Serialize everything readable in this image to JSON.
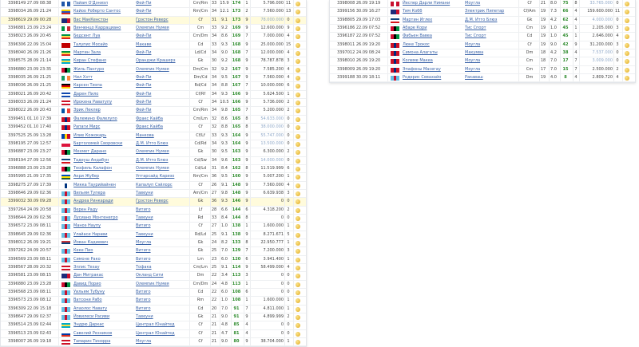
{
  "colors": {
    "link": "#3a63a8",
    "rating": "#2c8a2c",
    "highlight": "#fffbdc",
    "dim_price": "#8fa8c8"
  },
  "left_table": [
    {
      "id": "3398149",
      "date": "27.09 08:38",
      "flag": "scotland",
      "name": "Пайам О'Дэниэл",
      "club": "Фей-Пи",
      "pos": "Cm/Rm",
      "age": "33",
      "q": "15.9",
      "rating": "174",
      "f": "1",
      "price": "5.796.000",
      "bids": "11"
    },
    {
      "id": "3398034",
      "date": "26.09 21:24",
      "flag": "ecuador",
      "name": "Кайоо Роберто Сантос",
      "club": "Фей-Пи",
      "pos": "Rm/Cm",
      "age": "34",
      "q": "12.1",
      "rating": "173",
      "f": "2",
      "price": "7.560.000",
      "bids": "13"
    },
    {
      "id": "3398619",
      "date": "29.09 00:28",
      "flag": "nz",
      "name": "Вас МакКенстон",
      "club": "Грэстон Реверс",
      "pos": "Cf",
      "age": "31",
      "q": "9.1",
      "rating": "173",
      "f": "9",
      "price": "78.000.000",
      "bids": "0",
      "highlight": true
    },
    {
      "id": "3396881",
      "date": "23.09 23:24",
      "flag": "italy",
      "name": "Винченцо Каррациано",
      "club": "Олемпик Нумея",
      "pos": "Cm",
      "age": "33",
      "q": "9.2",
      "rating": "169",
      "f": "9",
      "price": "12.600.000",
      "bids": "9"
    },
    {
      "id": "3398023",
      "date": "26.09 20:45",
      "flag": "congo",
      "name": "Бедсент Луа",
      "club": "Фей-Пи",
      "pos": "Cm/Dm",
      "age": "34",
      "q": "8.6",
      "rating": "169",
      "f": "7",
      "price": "7.000.000",
      "bids": "4"
    },
    {
      "id": "3396306",
      "date": "22.09 15:04",
      "flag": "tonga",
      "name": "Талупис Мосайо",
      "club": "Макаве",
      "pos": "Cd",
      "age": "33",
      "q": "9.3",
      "rating": "168",
      "f": "9",
      "price": "25.000.000",
      "bids": "15"
    },
    {
      "id": "3398040",
      "date": "26.09 21:26",
      "flag": "congo",
      "name": "Мартин Зала",
      "club": "Фей-Пи",
      "pos": "Ld/Cd",
      "age": "34",
      "q": "9.0",
      "rating": "168",
      "f": "7",
      "price": "12.000.000",
      "bids": "4"
    },
    {
      "id": "3398575",
      "date": "28.09 21:14",
      "flag": "bahamas",
      "name": "Киран Стефано",
      "club": "Оранджи Крашерз",
      "pos": "Gk",
      "age": "30",
      "q": "9.2",
      "rating": "168",
      "f": "9",
      "price": "78.787.878",
      "bids": "3"
    },
    {
      "id": "3396880",
      "date": "23.09 23:35",
      "flag": "vanuatu",
      "name": "Жиль Пангуро",
      "club": "Олемпик Нумея",
      "pos": "Dm/Cm",
      "age": "32",
      "q": "9.2",
      "rating": "167",
      "f": "9",
      "price": "7.585.200",
      "bids": "4"
    },
    {
      "id": "3398035",
      "date": "26.09 21:25",
      "flag": "ireland",
      "name": "Нил Хэтт",
      "club": "Фей-Пи",
      "pos": "Dm/Cd",
      "age": "34",
      "q": "9.5",
      "rating": "167",
      "f": "9",
      "price": "7.560.000",
      "bids": "4"
    },
    {
      "id": "3398036",
      "date": "26.09 21:25",
      "flag": "germany",
      "name": "Карсен Тиэпа",
      "club": "Фей-Пи",
      "pos": "Rd/Cd",
      "age": "34",
      "q": "8.8",
      "rating": "167",
      "f": "7",
      "price": "10.000.000",
      "bids": "6"
    },
    {
      "id": "3398021",
      "date": "26.09 20:42",
      "flag": "salvador",
      "name": "Дарен Пило",
      "club": "Фей-Пи",
      "pos": "Cf/Rf",
      "age": "34",
      "q": "9.3",
      "rating": "166",
      "f": "9",
      "price": "5.624.500",
      "bids": "1"
    },
    {
      "id": "3398033",
      "date": "26.09 21:24",
      "flag": "tahiti",
      "name": "Ирокена Раватупу",
      "club": "Фей-Пи",
      "pos": "Cf",
      "age": "34",
      "q": "10.5",
      "rating": "166",
      "f": "9",
      "price": "5.736.000",
      "bids": "2"
    },
    {
      "id": "3398022",
      "date": "26.09 20:43",
      "flag": "france",
      "name": "Эрик Леклер",
      "club": "Фей-Пи",
      "pos": "Cm/Rm",
      "age": "34",
      "q": "9.8",
      "rating": "165",
      "f": "7",
      "price": "5.200.000",
      "bids": "2"
    },
    {
      "id": "3399451",
      "date": "01.10 17:39",
      "flag": "samoa",
      "name": "Фалемино Фалелупо",
      "club": "Фракс Кайба",
      "pos": "Cm/Lm",
      "age": "32",
      "q": "8.6",
      "rating": "165",
      "f": "8",
      "price": "54.633.000",
      "bids": "0"
    },
    {
      "id": "3399452",
      "date": "01.10 17:40",
      "flag": "samoa",
      "name": "Рапаги Мирс",
      "club": "Фракс Кайба",
      "pos": "Cf",
      "age": "32",
      "q": "8.8",
      "rating": "165",
      "f": "8",
      "price": "38.000.000",
      "bids": "0"
    },
    {
      "id": "3397525",
      "date": "25.09 13:28",
      "flag": "moldova",
      "name": "Илие Кожокарь",
      "club": "Манкова",
      "pos": "Cf/Lf",
      "age": "33",
      "q": "9.3",
      "rating": "164",
      "f": "9",
      "price": "55.747.000",
      "bids": "0"
    },
    {
      "id": "3398195",
      "date": "27.09 12:57",
      "flag": "poland",
      "name": "Бартоломей Своровски",
      "club": "Д.М. Итго Блюз",
      "pos": "Cd/Rd",
      "age": "34",
      "q": "9.3",
      "rating": "164",
      "f": "9",
      "price": "13.500.000",
      "bids": "0"
    },
    {
      "id": "3396887",
      "date": "23.09 23:27",
      "flag": "vanuatu",
      "name": "Мехмет Дарано",
      "club": "Олемпик Нумея",
      "pos": "Gk",
      "age": "30",
      "q": "9.5",
      "rating": "163",
      "f": "9",
      "price": "6.300.000",
      "bids": "2"
    },
    {
      "id": "3398194",
      "date": "27.09 12:56",
      "flag": "czech",
      "name": "Тадеуш Андабун",
      "club": "Д.М. Итго Блюз",
      "pos": "Cd/Sw",
      "age": "34",
      "q": "9.6",
      "rating": "163",
      "f": "9",
      "price": "14.000.000",
      "bids": "0"
    },
    {
      "id": "3396888",
      "date": "23.09 23:28",
      "flag": "vanuatu",
      "name": "Теофиль Калафон",
      "club": "Олемпик Нумея",
      "pos": "Cd/Ld",
      "age": "31",
      "q": "8.4",
      "rating": "162",
      "f": "8",
      "price": "11.519.999",
      "bids": "6"
    },
    {
      "id": "3395995",
      "date": "21.09 17:35",
      "flag": "solomon",
      "name": "Акри Жубер",
      "club": "Уптарсайд Каризо",
      "pos": "Rm/Cm",
      "age": "36",
      "q": "9.5",
      "rating": "160",
      "f": "9",
      "price": "5.007.200",
      "bids": "1"
    },
    {
      "id": "3398275",
      "date": "27.09 17:39",
      "flag": "finland",
      "name": "Микка Таурийайнен",
      "club": "Капалуп Сэйлорс",
      "pos": "Cf",
      "age": "26",
      "q": "9.1",
      "rating": "148",
      "f": "9",
      "price": "7.560.000",
      "bids": "4"
    },
    {
      "id": "3398646",
      "date": "29.09 02:36",
      "flag": "fiji",
      "name": "Вильям Тупера",
      "club": "Тавеуни",
      "pos": "Am/Cm",
      "age": "27",
      "q": "9.8",
      "rating": "148",
      "f": "9",
      "price": "6.639.938",
      "bids": "3"
    },
    {
      "id": "3399032",
      "date": "30.09 09:28",
      "flag": "fiji",
      "name": "Андреа Ринкаради",
      "club": "Грэстон Реверс",
      "pos": "Gk",
      "age": "36",
      "q": "9.3",
      "rating": "146",
      "f": "9",
      "price": "0",
      "bids": "0",
      "highlight": true
    },
    {
      "id": "3397264",
      "date": "24.09 20:58",
      "flag": "fiji",
      "name": "Верен Раду",
      "club": "Витиго",
      "pos": "Lf",
      "age": "28",
      "q": "6.6",
      "rating": "144",
      "f": "6",
      "price": "4.318.200",
      "bids": "2"
    },
    {
      "id": "3398644",
      "date": "29.09 02:36",
      "flag": "fiji",
      "name": "Лусиано Монтенегро",
      "club": "Тавеуни",
      "pos": "Rd",
      "age": "33",
      "q": "8.4",
      "rating": "144",
      "f": "8",
      "price": "0",
      "bids": "0"
    },
    {
      "id": "3396572",
      "date": "23.09 08:11",
      "flag": "fiji",
      "name": "Маноэ Наупу",
      "club": "Витиго",
      "pos": "Cf",
      "age": "27",
      "q": "1.0",
      "rating": "138",
      "f": "1",
      "price": "1.600.000",
      "bids": "1"
    },
    {
      "id": "3398645",
      "date": "29.09 02:36",
      "flag": "fiji",
      "name": "Улайаси Нарави",
      "club": "Тавеуни",
      "pos": "Rd/Ld",
      "age": "25",
      "q": "9.1",
      "rating": "138",
      "f": "9",
      "price": "8.271.671",
      "bids": "5"
    },
    {
      "id": "3398012",
      "date": "26.09 19:21",
      "flag": "serbia",
      "name": "Йован Кадиевич",
      "club": "Моугла",
      "pos": "Gk",
      "age": "24",
      "q": "8.2",
      "rating": "133",
      "f": "8",
      "price": "22.950.777",
      "bids": "1"
    },
    {
      "id": "3397262",
      "date": "24.09 20:57",
      "flag": "fiji",
      "name": "Кеке Пио",
      "club": "Витиго",
      "pos": "Gk",
      "age": "25",
      "q": "7.0",
      "rating": "129",
      "f": "7",
      "price": "7.200.000",
      "bids": "3"
    },
    {
      "id": "3396569",
      "date": "23.09 08:11",
      "flag": "fiji",
      "name": "Симоне Рако",
      "club": "Витиго",
      "pos": "Lm",
      "age": "23",
      "q": "6.0",
      "rating": "120",
      "f": "6",
      "price": "3.941.400",
      "bids": "1"
    },
    {
      "id": "3398567",
      "date": "28.09 20:32",
      "flag": "tahiti",
      "name": "Эллис Техау",
      "club": "Тофака",
      "pos": "Cm/Lm",
      "age": "25",
      "q": "9.1",
      "rating": "114",
      "f": "9",
      "price": "58.499.000",
      "bids": "4"
    },
    {
      "id": "3396581",
      "date": "23.09 08:15",
      "flag": "nz",
      "name": "Дан Митракас",
      "club": "Окланд Сити",
      "pos": "Dm",
      "age": "22",
      "q": "3.4",
      "rating": "113",
      "f": "3",
      "price": "0",
      "bids": "0"
    },
    {
      "id": "3396880",
      "date": "23.09 23:28",
      "flag": "vanuatu",
      "name": "Давид Порио",
      "club": "Олемпик Нумея",
      "pos": "Cm/Dm",
      "age": "24",
      "q": "4.8",
      "rating": "113",
      "f": "1",
      "price": "0",
      "bids": "0"
    },
    {
      "id": "3396568",
      "date": "23.09 08:11",
      "flag": "fiji",
      "name": "Уильям Тубуну",
      "club": "Витиго",
      "pos": "Cd",
      "age": "22",
      "q": "6.0",
      "rating": "108",
      "f": "6",
      "price": "0",
      "bids": "0"
    },
    {
      "id": "3396573",
      "date": "23.09 08:12",
      "flag": "fiji",
      "name": "Ватсони Рабо",
      "club": "Витиго",
      "pos": "Rm",
      "age": "22",
      "q": "1.0",
      "rating": "108",
      "f": "1",
      "price": "1.600.000",
      "bids": "1"
    },
    {
      "id": "3396309",
      "date": "22.09 15:18",
      "flag": "fiji",
      "name": "Апаолос Навату",
      "club": "Витиго",
      "pos": "Cd",
      "age": "20",
      "q": "7.0",
      "rating": "91",
      "f": "7",
      "price": "4.811.000",
      "bids": "1"
    },
    {
      "id": "3398647",
      "date": "29.09 02:37",
      "flag": "fiji",
      "name": "Йовилеси Расиви",
      "club": "Тавеуни",
      "pos": "Gk",
      "age": "21",
      "q": "9.0",
      "rating": "91",
      "f": "9",
      "price": "4.899.999",
      "bids": "2"
    },
    {
      "id": "3396514",
      "date": "23.09 02:44",
      "flag": "bahamas",
      "name": "Эндрю Даркас",
      "club": "Централ Юнайтед",
      "pos": "Cf",
      "age": "21",
      "q": "4.8",
      "rating": "85",
      "f": "4",
      "price": "0",
      "bids": "0"
    },
    {
      "id": "3396513",
      "date": "23.09 02:43",
      "flag": "russia",
      "name": "Савелий Резников",
      "club": "Централ Юнайтед",
      "pos": "Cf",
      "age": "21",
      "q": "4.7",
      "rating": "81",
      "f": "4",
      "price": "0",
      "bids": "0"
    },
    {
      "id": "3398007",
      "date": "26.09 19:18",
      "flag": "tahiti",
      "name": "Тамарин Тинорра",
      "club": "Моугла",
      "pos": "Cf",
      "age": "21",
      "q": "9.0",
      "rating": "80",
      "f": "9",
      "price": "38.704.000",
      "bids": "1"
    }
  ],
  "right_table": [
    {
      "id": "3398008",
      "date": "26.09 19:19",
      "flag": "denmark",
      "name": "Йеспер Дарли Нимани",
      "club": "Моугла",
      "pos": "Cf",
      "age": "21",
      "q": "8.0",
      "rating": "75",
      "f": "8",
      "price": "33.765.000",
      "bids": "0"
    },
    {
      "id": "3399156",
      "date": "30.09 16:27",
      "flag": "nz",
      "name": "Тим Кобб",
      "club": "Электрик Пипетар",
      "pos": "Cf/Am",
      "age": "19",
      "q": "7.3",
      "rating": "66",
      "f": "4",
      "price": "159.600.000",
      "bids": "11"
    },
    {
      "id": "3398805",
      "date": "29.09 17:03",
      "flag": "czech",
      "name": "Мартин Иглех",
      "club": "Д.М. Итго Блюз",
      "pos": "Gk",
      "age": "19",
      "q": "4.2",
      "rating": "62",
      "f": "4",
      "price": "4.000.000",
      "bids": "0"
    },
    {
      "id": "3396186",
      "date": "22.09 07:52",
      "flag": "vanuatu",
      "name": "Абаре Кори",
      "club": "Тис Спорт",
      "pos": "Cm",
      "age": "19",
      "q": "1.0",
      "rating": "45",
      "f": "1",
      "price": "2.205.000",
      "bids": "3"
    },
    {
      "id": "3396187",
      "date": "22.09 07:52",
      "flag": "vanuatu",
      "name": "Фабьен Вавеа",
      "club": "Тис Спорт",
      "pos": "Cd",
      "age": "19",
      "q": "1.0",
      "rating": "45",
      "f": "1",
      "price": "2.646.000",
      "bids": "4"
    },
    {
      "id": "3398011",
      "date": "26.09 19:20",
      "flag": "samoa",
      "name": "Люке Трокос",
      "club": "Моугла",
      "pos": "Cf",
      "age": "19",
      "q": "9.0",
      "rating": "42",
      "f": "9",
      "price": "31.200.000",
      "bids": "3"
    },
    {
      "id": "3397012",
      "date": "24.09 08:24",
      "flag": "samoa",
      "name": "Симона Алагаты",
      "club": "Макумва",
      "pos": "Dm",
      "age": "18",
      "q": "4.2",
      "rating": "38",
      "f": "4",
      "price": "7.537.000",
      "bids": "0"
    },
    {
      "id": "3398010",
      "date": "26.09 19:20",
      "flag": "samoa",
      "name": "Колеме Макеа",
      "club": "Моугла",
      "pos": "Cm",
      "age": "18",
      "q": "7.0",
      "rating": "17",
      "f": "7",
      "price": "3.009.000",
      "bids": "0"
    },
    {
      "id": "3398009",
      "date": "26.09 19:20",
      "flag": "samoa",
      "name": "Эпафоны Масегау",
      "club": "Моугла",
      "pos": "Cm",
      "age": "17",
      "q": "7.0",
      "rating": "15",
      "f": "7",
      "price": "2.500.000",
      "bids": "2"
    },
    {
      "id": "3399188",
      "date": "30.09 18:11",
      "flag": "fiji",
      "name": "Родерис Севахайо",
      "club": "Ракаваш",
      "pos": "Dm",
      "age": "19",
      "q": "4.0",
      "rating": "8",
      "f": "4",
      "price": "2.809.720",
      "bids": "4"
    }
  ]
}
